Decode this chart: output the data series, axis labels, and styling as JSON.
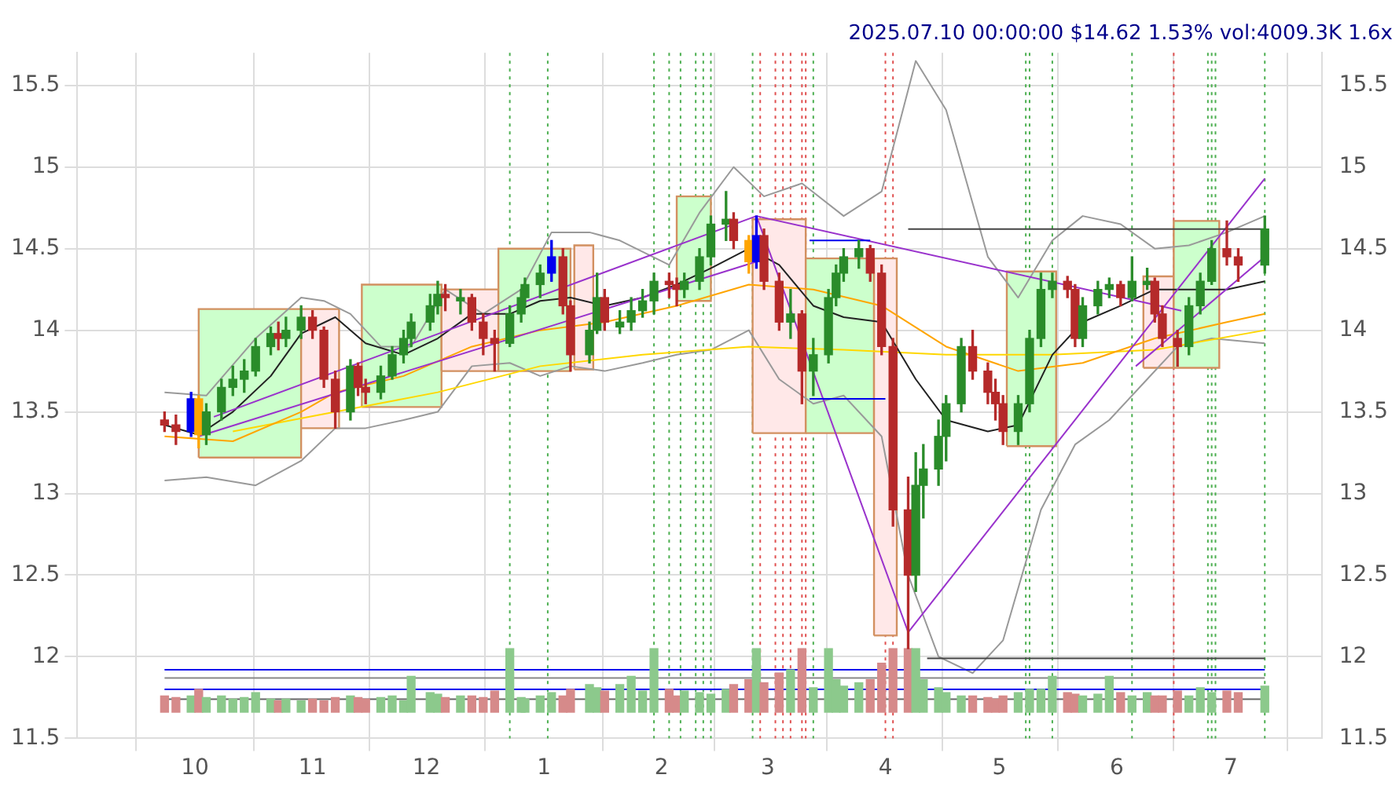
{
  "chart_data": {
    "type": "candlestick",
    "title": "2025.07.10 00:00:00 $14.62 1.53% vol:4009.3K 1.6x",
    "x": [
      "2024-09-23",
      "2024-09-26",
      "2024-09-30",
      "2024-10-02",
      "2024-10-04",
      "2024-10-08",
      "2024-10-11",
      "2024-10-14",
      "2024-10-17",
      "2024-10-21",
      "2024-10-23",
      "2024-10-25",
      "2024-10-29",
      "2024-11-01",
      "2024-11-04",
      "2024-11-07",
      "2024-11-11",
      "2024-11-13",
      "2024-11-15",
      "2024-11-19",
      "2024-11-22",
      "2024-11-25",
      "2024-11-27",
      "2024-12-02",
      "2024-12-04",
      "2024-12-06",
      "2024-12-10",
      "2024-12-13",
      "2024-12-16",
      "2024-12-19",
      "2024-12-23",
      "2024-12-26",
      "2024-12-27",
      "2024-12-31",
      "2025-01-03",
      "2025-01-06",
      "2025-01-08",
      "2025-01-13",
      "2025-01-15",
      "2025-01-17",
      "2025-01-21",
      "2025-01-24",
      "2025-01-27",
      "2025-01-30",
      "2025-02-03",
      "2025-02-05",
      "2025-02-07",
      "2025-02-11",
      "2025-02-14",
      "2025-02-18",
      "2025-02-20",
      "2025-02-24",
      "2025-02-26",
      "2025-02-28",
      "2025-03-04",
      "2025-03-07",
      "2025-03-10",
      "2025-03-13",
      "2025-03-17",
      "2025-03-19",
      "2025-03-21",
      "2025-03-25",
      "2025-03-28",
      "2025-03-31",
      "2025-04-03",
      "2025-04-07",
      "2025-04-09",
      "2025-04-11",
      "2025-04-15",
      "2025-04-17",
      "2025-04-21",
      "2025-04-24",
      "2025-04-28",
      "2025-04-30",
      "2025-05-02",
      "2025-05-06",
      "2025-05-09",
      "2025-05-12",
      "2025-05-15",
      "2025-05-19",
      "2025-05-21",
      "2025-05-23",
      "2025-05-27",
      "2025-05-30",
      "2025-06-02",
      "2025-06-05",
      "2025-06-09",
      "2025-06-11",
      "2025-06-13",
      "2025-06-17",
      "2025-06-20",
      "2025-06-23",
      "2025-06-26",
      "2025-06-30",
      "2025-07-03",
      "2025-07-10"
    ],
    "xlim": [
      "2024-08-31",
      "2025-07-25"
    ],
    "xticks": [
      {
        "value": "2024-10-01",
        "label": "10"
      },
      {
        "value": "2024-11-01",
        "label": "11"
      },
      {
        "value": "2024-12-01",
        "label": "12"
      },
      {
        "value": "2025-01-01",
        "label": "1"
      },
      {
        "value": "2025-02-01",
        "label": "2"
      },
      {
        "value": "2025-03-01",
        "label": "3"
      },
      {
        "value": "2025-04-01",
        "label": "4"
      },
      {
        "value": "2025-05-01",
        "label": "5"
      },
      {
        "value": "2025-06-01",
        "label": "6"
      },
      {
        "value": "2025-07-01",
        "label": "7"
      }
    ],
    "ylim": [
      11.5,
      15.7
    ],
    "yticks": [
      11.5,
      12.0,
      12.5,
      13.0,
      13.5,
      14.0,
      14.5,
      15.0,
      15.5
    ],
    "y2lim": [
      11.5,
      15.7
    ],
    "y2ticks": [
      11.5,
      12.0,
      12.5,
      13.0,
      13.5,
      14.0,
      14.5,
      15.0,
      15.5
    ],
    "grid": true,
    "series": [
      {
        "type": "area",
        "color": "#ccffcc",
        "x": [
          "2024-10-02",
          "2024-10-02",
          "2024-10-29",
          "2024-10-29",
          "2024-10-02"
        ],
        "values": [
          13.22,
          14.13,
          14.13,
          13.22,
          13.22
        ]
      },
      {
        "type": "area",
        "color": "#ffe8e8",
        "x": [
          "2024-10-29",
          "2024-10-29",
          "2024-11-08",
          "2024-11-08",
          "2024-10-29"
        ],
        "values": [
          13.4,
          14.13,
          14.13,
          13.4,
          13.4
        ]
      },
      {
        "type": "area",
        "color": "#ccffcc",
        "x": [
          "2024-11-14",
          "2024-11-14",
          "2024-12-05",
          "2024-12-05",
          "2024-11-14"
        ],
        "values": [
          13.53,
          14.28,
          14.28,
          13.53,
          13.53
        ]
      },
      {
        "type": "area",
        "color": "#ffe8e8",
        "x": [
          "2024-12-05",
          "2024-12-05",
          "2024-12-20",
          "2024-12-20",
          "2024-12-05"
        ],
        "values": [
          13.75,
          14.25,
          14.25,
          13.75,
          13.75
        ]
      },
      {
        "type": "area",
        "color": "#ccffcc",
        "x": [
          "2024-12-20",
          "2024-12-20",
          "2025-01-08",
          "2025-01-08",
          "2024-12-20"
        ],
        "values": [
          13.75,
          14.5,
          14.5,
          13.75,
          13.75
        ]
      },
      {
        "type": "area",
        "color": "#ffe8e8",
        "x": [
          "2025-01-09",
          "2025-01-09",
          "2025-01-14",
          "2025-01-14",
          "2025-01-09"
        ],
        "values": [
          13.76,
          14.52,
          14.52,
          13.76,
          13.76
        ]
      },
      {
        "type": "area",
        "color": "#ccffcc",
        "x": [
          "2025-02-05",
          "2025-02-05",
          "2025-02-14",
          "2025-02-14",
          "2025-02-05"
        ],
        "values": [
          14.18,
          14.82,
          14.82,
          14.18,
          14.18
        ]
      },
      {
        "type": "area",
        "color": "#ffe8e8",
        "x": [
          "2025-02-25",
          "2025-02-25",
          "2025-03-11",
          "2025-03-11",
          "2025-02-25"
        ],
        "values": [
          13.37,
          14.68,
          14.68,
          13.37,
          13.37
        ]
      },
      {
        "type": "area",
        "color": "#ccffcc",
        "x": [
          "2025-03-11",
          "2025-03-11",
          "2025-03-29",
          "2025-03-29",
          "2025-03-11"
        ],
        "values": [
          13.37,
          14.44,
          14.44,
          13.37,
          13.37
        ]
      },
      {
        "type": "area",
        "color": "#ffe8e8",
        "x": [
          "2025-03-29",
          "2025-03-29",
          "2025-04-04",
          "2025-04-04",
          "2025-03-29"
        ],
        "values": [
          12.13,
          14.44,
          14.44,
          12.13,
          12.13
        ]
      },
      {
        "type": "area",
        "color": "#ccffcc",
        "x": [
          "2025-05-03",
          "2025-05-03",
          "2025-05-16",
          "2025-05-16",
          "2025-05-03"
        ],
        "values": [
          13.29,
          14.36,
          14.36,
          13.29,
          13.29
        ]
      },
      {
        "type": "area",
        "color": "#ffe8e8",
        "x": [
          "2025-06-08",
          "2025-06-08",
          "2025-06-16",
          "2025-06-16",
          "2025-06-08"
        ],
        "values": [
          13.77,
          14.33,
          14.33,
          13.77,
          13.77
        ]
      },
      {
        "type": "area",
        "color": "#ccffcc",
        "x": [
          "2025-06-16",
          "2025-06-16",
          "2025-06-28",
          "2025-06-28",
          "2025-06-16"
        ],
        "values": [
          13.77,
          14.67,
          14.67,
          13.77,
          13.77
        ]
      },
      {
        "type": "line",
        "color": "#999999",
        "x": [
          "2024-09-23",
          "2024-10-04",
          "2024-10-17",
          "2024-10-29",
          "2024-11-04",
          "2024-11-11",
          "2024-11-19",
          "2024-11-27",
          "2024-12-06",
          "2024-12-16",
          "2024-12-26",
          "2025-01-03",
          "2025-01-13",
          "2025-01-21",
          "2025-02-03",
          "2025-02-11",
          "2025-02-20",
          "2025-02-28",
          "2025-03-10",
          "2025-03-21",
          "2025-03-31",
          "2025-04-09",
          "2025-04-17",
          "2025-04-28",
          "2025-05-06",
          "2025-05-15",
          "2025-05-23",
          "2025-06-02",
          "2025-06-11",
          "2025-06-20",
          "2025-06-30",
          "2025-07-10"
        ],
        "values": [
          13.62,
          13.6,
          13.95,
          14.2,
          14.18,
          14.1,
          13.9,
          13.9,
          14.25,
          14.1,
          14.25,
          14.6,
          14.6,
          14.55,
          14.4,
          14.72,
          15.0,
          14.82,
          14.9,
          14.7,
          14.85,
          15.65,
          15.35,
          14.45,
          14.2,
          14.55,
          14.7,
          14.65,
          14.5,
          14.52,
          14.6,
          14.7
        ]
      },
      {
        "type": "line",
        "color": "#999999",
        "x": [
          "2024-09-23",
          "2024-10-04",
          "2024-10-17",
          "2024-10-29",
          "2024-11-07",
          "2024-11-15",
          "2024-11-25",
          "2024-12-04",
          "2024-12-13",
          "2024-12-23",
          "2024-12-31",
          "2025-01-08",
          "2025-01-17",
          "2025-01-27",
          "2025-02-05",
          "2025-02-14",
          "2025-02-24",
          "2025-03-04",
          "2025-03-13",
          "2025-03-21",
          "2025-03-31",
          "2025-04-07",
          "2025-04-15",
          "2025-04-24",
          "2025-05-02",
          "2025-05-12",
          "2025-05-21",
          "2025-05-30",
          "2025-06-09",
          "2025-06-17",
          "2025-06-26",
          "2025-07-10"
        ],
        "values": [
          13.08,
          13.1,
          13.05,
          13.2,
          13.4,
          13.4,
          13.45,
          13.5,
          13.78,
          13.8,
          13.72,
          13.78,
          13.75,
          13.8,
          13.85,
          13.88,
          14.0,
          13.7,
          13.55,
          13.6,
          13.35,
          12.5,
          12.0,
          11.9,
          12.1,
          12.9,
          13.3,
          13.45,
          13.7,
          13.9,
          13.95,
          13.92
        ]
      },
      {
        "type": "line",
        "color": "#ffd700",
        "x": [
          "2024-10-11",
          "2024-11-07",
          "2024-12-04",
          "2024-12-31",
          "2025-01-27",
          "2025-02-24",
          "2025-03-21",
          "2025-04-17",
          "2025-05-15",
          "2025-06-11",
          "2025-07-10"
        ],
        "values": [
          13.38,
          13.5,
          13.62,
          13.78,
          13.85,
          13.9,
          13.88,
          13.85,
          13.85,
          13.88,
          14.0
        ]
      },
      {
        "type": "line",
        "color": "#ffa500",
        "x": [
          "2024-09-23",
          "2024-10-11",
          "2024-10-29",
          "2024-11-07",
          "2024-11-25",
          "2024-12-13",
          "2024-12-31",
          "2025-01-17",
          "2025-02-05",
          "2025-02-24",
          "2025-03-13",
          "2025-03-31",
          "2025-04-17",
          "2025-05-06",
          "2025-05-23",
          "2025-06-11",
          "2025-06-30",
          "2025-07-10"
        ],
        "values": [
          13.35,
          13.32,
          13.5,
          13.62,
          13.72,
          13.9,
          14.0,
          14.05,
          14.15,
          14.28,
          14.25,
          14.15,
          13.9,
          13.75,
          13.8,
          13.95,
          14.05,
          14.1
        ]
      },
      {
        "type": "line",
        "color": "#222222",
        "x": [
          "2024-09-23",
          "2024-10-02",
          "2024-10-11",
          "2024-10-21",
          "2024-10-29",
          "2024-11-07",
          "2024-11-15",
          "2024-11-25",
          "2024-12-04",
          "2024-12-13",
          "2024-12-23",
          "2024-12-31",
          "2025-01-08",
          "2025-01-17",
          "2025-01-27",
          "2025-02-05",
          "2025-02-14",
          "2025-02-24",
          "2025-03-04",
          "2025-03-13",
          "2025-03-21",
          "2025-03-31",
          "2025-04-09",
          "2025-04-17",
          "2025-04-28",
          "2025-05-06",
          "2025-05-15",
          "2025-05-23",
          "2025-06-02",
          "2025-06-11",
          "2025-06-20",
          "2025-06-30",
          "2025-07-10"
        ],
        "values": [
          13.42,
          13.36,
          13.5,
          13.72,
          13.98,
          14.08,
          13.92,
          13.85,
          13.95,
          14.1,
          14.1,
          14.18,
          14.2,
          14.15,
          14.2,
          14.28,
          14.38,
          14.5,
          14.4,
          14.15,
          14.08,
          14.05,
          13.7,
          13.45,
          13.38,
          13.42,
          13.85,
          14.05,
          14.15,
          14.25,
          14.25,
          14.25,
          14.3
        ]
      },
      {
        "type": "line",
        "color": "#9932cc",
        "x": [
          "2024-10-06",
          "2025-02-26"
        ],
        "values": [
          13.47,
          14.7
        ]
      },
      {
        "type": "line",
        "color": "#9932cc",
        "x": [
          "2024-10-02",
          "2025-02-26"
        ],
        "values": [
          13.35,
          14.42
        ]
      },
      {
        "type": "line",
        "color": "#9932cc",
        "x": [
          "2025-02-26",
          "2025-04-07"
        ],
        "values": [
          14.7,
          12.15
        ]
      },
      {
        "type": "line",
        "color": "#9932cc",
        "x": [
          "2025-02-26",
          "2025-06-18"
        ],
        "values": [
          14.7,
          14.12
        ]
      },
      {
        "type": "line",
        "color": "#9932cc",
        "x": [
          "2025-04-07",
          "2025-07-10"
        ],
        "values": [
          12.15,
          14.93
        ]
      },
      {
        "type": "line",
        "color": "#9932cc",
        "x": [
          "2025-06-06",
          "2025-07-10"
        ],
        "values": [
          13.78,
          14.45
        ]
      },
      {
        "type": "line",
        "color": "#444444",
        "x": [
          "2025-04-07",
          "2025-07-10"
        ],
        "values": [
          14.62,
          14.62
        ]
      },
      {
        "type": "line",
        "color": "#444444",
        "x": [
          "2025-04-12",
          "2025-07-10"
        ],
        "values": [
          11.99,
          11.99
        ]
      },
      {
        "type": "line",
        "color": "#0000ee",
        "x": [
          "2025-03-12",
          "2025-03-28"
        ],
        "values": [
          14.55,
          14.55
        ]
      },
      {
        "type": "line",
        "color": "#0000ee",
        "x": [
          "2025-03-12",
          "2025-04-01"
        ],
        "values": [
          13.58,
          13.58
        ]
      },
      {
        "type": "line",
        "color": "#0000ee",
        "x": [
          "2024-09-23",
          "2025-07-10"
        ],
        "values": [
          11.92,
          11.92
        ]
      },
      {
        "type": "line",
        "color": "#888888",
        "x": [
          "2024-09-23",
          "2025-07-10"
        ],
        "values": [
          11.87,
          11.87
        ]
      },
      {
        "type": "line",
        "color": "#0000ee",
        "x": [
          "2024-09-23",
          "2025-07-10"
        ],
        "values": [
          11.8,
          11.8
        ]
      },
      {
        "type": "line",
        "color": "#666666",
        "x": [
          "2024-09-23",
          "2025-07-10"
        ],
        "values": [
          11.74,
          11.74
        ]
      },
      {
        "type": "bar",
        "base": [
          11.66,
          11.66,
          11.66,
          11.66,
          11.66,
          11.66,
          11.66,
          11.66,
          11.66,
          11.66,
          11.66,
          11.66,
          11.66,
          11.66,
          11.66,
          11.66,
          11.66,
          11.66,
          11.66,
          11.66,
          11.66,
          11.66,
          11.66,
          11.66,
          11.66,
          11.66,
          11.66,
          11.66,
          11.66,
          11.66,
          11.66,
          11.66,
          11.66,
          11.66,
          11.66,
          11.66,
          11.66,
          11.66,
          11.66,
          11.66,
          11.66,
          11.66,
          11.66,
          11.66,
          11.66,
          11.66,
          11.66,
          11.66,
          11.66,
          11.66,
          11.66,
          11.66,
          11.66,
          11.66,
          11.66,
          11.66,
          11.66,
          11.66,
          11.66,
          11.66,
          11.66,
          11.66,
          11.66,
          11.66,
          11.66,
          11.66,
          11.66,
          11.66,
          11.66,
          11.66,
          11.66,
          11.66,
          11.66,
          11.66,
          11.66,
          11.66,
          11.66,
          11.66,
          11.66,
          11.66,
          11.66,
          11.66,
          11.66,
          11.66,
          11.66,
          11.66,
          11.66,
          11.66,
          11.66,
          11.66,
          11.66,
          11.66,
          11.66,
          11.66,
          11.66,
          11.66
        ],
        "values": [
          0.1,
          0.09,
          0.1,
          0.14,
          0.09,
          0.1,
          0.08,
          0.09,
          0.12,
          0.08,
          0.07,
          0.08,
          0.07,
          0.08,
          0.07,
          0.09,
          0.1,
          0.09,
          0.08,
          0.09,
          0.1,
          0.07,
          0.22,
          0.12,
          0.11,
          0.09,
          0.1,
          0.1,
          0.09,
          0.13,
          0.39,
          0.09,
          0.08,
          0.1,
          0.12,
          0.1,
          0.14,
          0.17,
          0.15,
          0.13,
          0.17,
          0.22,
          0.13,
          0.39,
          0.14,
          0.1,
          0.13,
          0.12,
          0.11,
          0.14,
          0.17,
          0.2,
          0.39,
          0.18,
          0.24,
          0.26,
          0.39,
          0.15,
          0.39,
          0.2,
          0.16,
          0.18,
          0.2,
          0.3,
          0.39,
          0.39,
          0.39,
          0.2,
          0.15,
          0.12,
          0.1,
          0.1,
          0.09,
          0.08,
          0.1,
          0.12,
          0.14,
          0.14,
          0.22,
          0.12,
          0.11,
          0.1,
          0.11,
          0.22,
          0.12,
          0.1,
          0.12,
          0.1,
          0.1,
          0.13,
          0.1,
          0.15,
          0.12,
          0.13,
          0.12,
          0.16
        ],
        "colors": [
          "#d68a8a",
          "#d68a8a",
          "#8cc98c",
          "#d68a8a",
          "#8cc98c",
          "#8cc98c",
          "#8cc98c",
          "#8cc98c",
          "#8cc98c",
          "#8cc98c",
          "#d68a8a",
          "#8cc98c",
          "#8cc98c",
          "#d68a8a",
          "#d68a8a",
          "#d68a8a",
          "#8cc98c",
          "#d68a8a",
          "#d68a8a",
          "#8cc98c",
          "#8cc98c",
          "#8cc98c",
          "#8cc98c",
          "#8cc98c",
          "#8cc98c",
          "#d68a8a",
          "#8cc98c",
          "#d68a8a",
          "#d68a8a",
          "#d68a8a",
          "#8cc98c",
          "#8cc98c",
          "#8cc98c",
          "#8cc98c",
          "#8cc98c",
          "#d68a8a",
          "#d68a8a",
          "#8cc98c",
          "#8cc98c",
          "#d68a8a",
          "#8cc98c",
          "#8cc98c",
          "#8cc98c",
          "#8cc98c",
          "#d68a8a",
          "#d68a8a",
          "#8cc98c",
          "#8cc98c",
          "#8cc98c",
          "#8cc98c",
          "#d68a8a",
          "#d68a8a",
          "#8cc98c",
          "#d68a8a",
          "#d68a8a",
          "#8cc98c",
          "#d68a8a",
          "#8cc98c",
          "#8cc98c",
          "#8cc98c",
          "#8cc98c",
          "#8cc98c",
          "#d68a8a",
          "#d68a8a",
          "#d68a8a",
          "#d68a8a",
          "#8cc98c",
          "#8cc98c",
          "#8cc98c",
          "#8cc98c",
          "#8cc98c",
          "#d68a8a",
          "#d68a8a",
          "#d68a8a",
          "#d68a8a",
          "#8cc98c",
          "#8cc98c",
          "#8cc98c",
          "#8cc98c",
          "#d68a8a",
          "#d68a8a",
          "#8cc98c",
          "#8cc98c",
          "#8cc98c",
          "#d68a8a",
          "#8cc98c",
          "#8cc98c",
          "#d68a8a",
          "#d68a8a",
          "#d68a8a",
          "#8cc98c",
          "#8cc98c",
          "#8cc98c",
          "#d68a8a",
          "#d68a8a",
          "#8cc98c"
        ]
      },
      {
        "ohlc": [
          [
            13.45,
            13.5,
            13.38,
            13.42
          ],
          [
            13.42,
            13.48,
            13.3,
            13.38
          ],
          [
            13.38,
            13.62,
            13.35,
            13.58
          ],
          [
            13.58,
            13.6,
            13.28,
            13.36
          ],
          [
            13.36,
            13.55,
            13.3,
            13.5
          ],
          [
            13.5,
            13.7,
            13.45,
            13.65
          ],
          [
            13.65,
            13.78,
            13.6,
            13.7
          ],
          [
            13.7,
            13.82,
            13.62,
            13.75
          ],
          [
            13.75,
            13.95,
            13.72,
            13.9
          ],
          [
            13.9,
            14.02,
            13.85,
            13.98
          ],
          [
            13.98,
            14.05,
            13.88,
            13.95
          ],
          [
            13.95,
            14.08,
            13.9,
            14.0
          ],
          [
            14.0,
            14.15,
            13.95,
            14.08
          ],
          [
            14.08,
            14.12,
            13.95,
            14.0
          ],
          [
            14.0,
            14.02,
            13.65,
            13.7
          ],
          [
            13.7,
            13.75,
            13.4,
            13.5
          ],
          [
            13.5,
            13.82,
            13.45,
            13.78
          ],
          [
            13.78,
            13.8,
            13.6,
            13.65
          ],
          [
            13.65,
            13.7,
            13.55,
            13.62
          ],
          [
            13.62,
            13.78,
            13.58,
            13.72
          ],
          [
            13.72,
            13.9,
            13.7,
            13.85
          ],
          [
            13.85,
            14.0,
            13.8,
            13.95
          ],
          [
            13.95,
            14.1,
            13.9,
            14.05
          ],
          [
            14.05,
            14.22,
            14.0,
            14.15
          ],
          [
            14.15,
            14.3,
            14.1,
            14.22
          ],
          [
            14.22,
            14.28,
            14.12,
            14.2
          ],
          [
            14.18,
            14.25,
            14.1,
            14.2
          ],
          [
            14.2,
            14.22,
            14.0,
            14.05
          ],
          [
            14.05,
            14.1,
            13.85,
            13.95
          ],
          [
            13.95,
            14.0,
            13.75,
            13.92
          ],
          [
            13.92,
            14.15,
            13.9,
            14.1
          ],
          [
            14.1,
            14.25,
            14.05,
            14.2
          ],
          [
            14.2,
            14.32,
            14.15,
            14.28
          ],
          [
            14.28,
            14.4,
            14.2,
            14.35
          ],
          [
            14.35,
            14.55,
            14.3,
            14.45
          ],
          [
            14.45,
            14.5,
            14.1,
            14.15
          ],
          [
            14.15,
            14.18,
            13.75,
            13.85
          ],
          [
            13.85,
            14.05,
            13.8,
            14.0
          ],
          [
            14.0,
            14.35,
            13.98,
            14.2
          ],
          [
            14.2,
            14.25,
            14.0,
            14.05
          ],
          [
            14.02,
            14.12,
            13.98,
            14.05
          ],
          [
            14.05,
            14.2,
            14.0,
            14.12
          ],
          [
            14.12,
            14.25,
            14.08,
            14.18
          ],
          [
            14.18,
            14.35,
            14.1,
            14.3
          ],
          [
            14.3,
            14.35,
            14.2,
            14.28
          ],
          [
            14.28,
            14.32,
            14.15,
            14.25
          ],
          [
            14.25,
            14.35,
            14.2,
            14.3
          ],
          [
            14.3,
            14.5,
            14.25,
            14.45
          ],
          [
            14.45,
            14.7,
            14.4,
            14.65
          ],
          [
            14.65,
            14.85,
            14.55,
            14.68
          ],
          [
            14.68,
            14.72,
            14.5,
            14.55
          ],
          [
            14.55,
            14.58,
            14.35,
            14.42
          ],
          [
            14.42,
            14.7,
            14.38,
            14.58
          ],
          [
            14.58,
            14.62,
            14.25,
            14.3
          ],
          [
            14.3,
            14.35,
            14.0,
            14.05
          ],
          [
            14.05,
            14.25,
            13.95,
            14.1
          ],
          [
            14.1,
            14.12,
            13.55,
            13.75
          ],
          [
            13.75,
            13.95,
            13.6,
            13.85
          ],
          [
            13.85,
            14.25,
            13.8,
            14.2
          ],
          [
            14.2,
            14.4,
            14.15,
            14.35
          ],
          [
            14.35,
            14.5,
            14.3,
            14.45
          ],
          [
            14.45,
            14.55,
            14.38,
            14.5
          ],
          [
            14.5,
            14.52,
            14.3,
            14.35
          ],
          [
            14.35,
            14.4,
            13.85,
            13.9
          ],
          [
            13.9,
            13.95,
            12.8,
            12.9
          ],
          [
            12.9,
            13.1,
            12.05,
            12.5
          ],
          [
            12.5,
            13.25,
            12.4,
            13.05
          ],
          [
            13.05,
            13.3,
            12.85,
            13.15
          ],
          [
            13.15,
            13.45,
            13.05,
            13.35
          ],
          [
            13.35,
            13.6,
            13.2,
            13.55
          ],
          [
            13.55,
            13.95,
            13.5,
            13.9
          ],
          [
            13.9,
            14.0,
            13.7,
            13.75
          ],
          [
            13.75,
            13.8,
            13.55,
            13.62
          ],
          [
            13.62,
            13.7,
            13.45,
            13.55
          ],
          [
            13.55,
            13.6,
            13.3,
            13.38
          ],
          [
            13.38,
            13.6,
            13.3,
            13.55
          ],
          [
            13.55,
            14.0,
            13.5,
            13.95
          ],
          [
            13.95,
            14.35,
            13.9,
            14.25
          ],
          [
            14.25,
            14.35,
            14.2,
            14.3
          ],
          [
            14.3,
            14.33,
            14.2,
            14.25
          ],
          [
            14.25,
            14.28,
            13.9,
            13.95
          ],
          [
            13.95,
            14.2,
            13.9,
            14.15
          ],
          [
            14.15,
            14.3,
            14.1,
            14.25
          ],
          [
            14.25,
            14.32,
            14.2,
            14.28
          ],
          [
            14.28,
            14.3,
            14.15,
            14.2
          ],
          [
            14.2,
            14.45,
            14.18,
            14.3
          ],
          [
            14.28,
            14.38,
            14.25,
            14.3
          ],
          [
            14.3,
            14.32,
            14.05,
            14.1
          ],
          [
            14.1,
            14.15,
            13.9,
            13.95
          ],
          [
            13.95,
            14.0,
            13.78,
            13.9
          ],
          [
            13.9,
            14.2,
            13.85,
            14.15
          ],
          [
            14.15,
            14.35,
            14.1,
            14.3
          ],
          [
            14.3,
            14.55,
            14.28,
            14.5
          ],
          [
            14.5,
            14.67,
            14.4,
            14.45
          ],
          [
            14.45,
            14.5,
            14.3,
            14.4
          ],
          [
            14.4,
            14.7,
            14.35,
            14.62
          ]
        ],
        "colors": [
          "#b52a2a",
          "#b52a2a",
          "#0000ee",
          "#ffa500",
          "#2a8c2a",
          "#2a8c2a",
          "#2a8c2a",
          "#2a8c2a",
          "#2a8c2a",
          "#2a8c2a",
          "#b52a2a",
          "#2a8c2a",
          "#2a8c2a",
          "#b52a2a",
          "#b52a2a",
          "#b52a2a",
          "#2a8c2a",
          "#b52a2a",
          "#b52a2a",
          "#2a8c2a",
          "#2a8c2a",
          "#2a8c2a",
          "#2a8c2a",
          "#2a8c2a",
          "#2a8c2a",
          "#b52a2a",
          "#2a8c2a",
          "#b52a2a",
          "#b52a2a",
          "#b52a2a",
          "#2a8c2a",
          "#2a8c2a",
          "#2a8c2a",
          "#2a8c2a",
          "#0000ee",
          "#b52a2a",
          "#b52a2a",
          "#2a8c2a",
          "#2a8c2a",
          "#b52a2a",
          "#2a8c2a",
          "#2a8c2a",
          "#2a8c2a",
          "#2a8c2a",
          "#b52a2a",
          "#b52a2a",
          "#2a8c2a",
          "#2a8c2a",
          "#2a8c2a",
          "#2a8c2a",
          "#b52a2a",
          "#ffa500",
          "#0000ee",
          "#b52a2a",
          "#b52a2a",
          "#2a8c2a",
          "#b52a2a",
          "#2a8c2a",
          "#2a8c2a",
          "#2a8c2a",
          "#2a8c2a",
          "#2a8c2a",
          "#b52a2a",
          "#b52a2a",
          "#b52a2a",
          "#b52a2a",
          "#2a8c2a",
          "#2a8c2a",
          "#2a8c2a",
          "#2a8c2a",
          "#2a8c2a",
          "#b52a2a",
          "#b52a2a",
          "#b52a2a",
          "#b52a2a",
          "#2a8c2a",
          "#2a8c2a",
          "#2a8c2a",
          "#2a8c2a",
          "#b52a2a",
          "#b52a2a",
          "#2a8c2a",
          "#2a8c2a",
          "#2a8c2a",
          "#b52a2a",
          "#2a8c2a",
          "#2a8c2a",
          "#b52a2a",
          "#b52a2a",
          "#b52a2a",
          "#2a8c2a",
          "#2a8c2a",
          "#2a8c2a",
          "#b52a2a",
          "#b52a2a",
          "#2a8c2a"
        ]
      }
    ],
    "ref_lines": [
      {
        "axis": "x",
        "value": "2024-12-23",
        "color": "#4caf50",
        "line_style": "dotted"
      },
      {
        "axis": "x",
        "value": "2025-01-02",
        "color": "#4caf50",
        "line_style": "dotted"
      },
      {
        "axis": "x",
        "value": "2025-01-30",
        "color": "#4caf50",
        "line_style": "dotted"
      },
      {
        "axis": "x",
        "value": "2025-02-03",
        "color": "#4caf50",
        "line_style": "dotted"
      },
      {
        "axis": "x",
        "value": "2025-02-06",
        "color": "#4caf50",
        "line_style": "dotted"
      },
      {
        "axis": "x",
        "value": "2025-02-10",
        "color": "#4caf50",
        "line_style": "dotted"
      },
      {
        "axis": "x",
        "value": "2025-02-12",
        "color": "#4caf50",
        "line_style": "dotted"
      },
      {
        "axis": "x",
        "value": "2025-02-14",
        "color": "#4caf50",
        "line_style": "dotted"
      },
      {
        "axis": "x",
        "value": "2025-02-25",
        "color": "#4caf50",
        "line_style": "dotted"
      },
      {
        "axis": "x",
        "value": "2025-02-27",
        "color": "#e05050",
        "line_style": "dotted"
      },
      {
        "axis": "x",
        "value": "2025-03-03",
        "color": "#e05050",
        "line_style": "dotted"
      },
      {
        "axis": "x",
        "value": "2025-03-05",
        "color": "#e05050",
        "line_style": "dotted"
      },
      {
        "axis": "x",
        "value": "2025-03-07",
        "color": "#e05050",
        "line_style": "dotted"
      },
      {
        "axis": "x",
        "value": "2025-03-10",
        "color": "#e05050",
        "line_style": "dotted"
      },
      {
        "axis": "x",
        "value": "2025-03-11",
        "color": "#e05050",
        "line_style": "dotted"
      },
      {
        "axis": "x",
        "value": "2025-03-13",
        "color": "#4caf50",
        "line_style": "dotted"
      },
      {
        "axis": "x",
        "value": "2025-04-01",
        "color": "#e05050",
        "line_style": "dotted"
      },
      {
        "axis": "x",
        "value": "2025-04-03",
        "color": "#e05050",
        "line_style": "dotted"
      },
      {
        "axis": "x",
        "value": "2025-05-08",
        "color": "#4caf50",
        "line_style": "dotted"
      },
      {
        "axis": "x",
        "value": "2025-05-09",
        "color": "#4caf50",
        "line_style": "dotted"
      },
      {
        "axis": "x",
        "value": "2025-05-15",
        "color": "#4caf50",
        "line_style": "dotted"
      },
      {
        "axis": "x",
        "value": "2025-06-05",
        "color": "#4caf50",
        "line_style": "dotted"
      },
      {
        "axis": "x",
        "value": "2025-06-16",
        "color": "#e05050",
        "line_style": "dotted"
      },
      {
        "axis": "x",
        "value": "2025-06-25",
        "color": "#4caf50",
        "line_style": "dotted"
      },
      {
        "axis": "x",
        "value": "2025-06-26",
        "color": "#4caf50",
        "line_style": "dotted"
      },
      {
        "axis": "x",
        "value": "2025-06-27",
        "color": "#4caf50",
        "line_style": "dotted"
      },
      {
        "axis": "x",
        "value": "2025-07-10",
        "color": "#4caf50",
        "line_style": "dotted"
      }
    ]
  }
}
